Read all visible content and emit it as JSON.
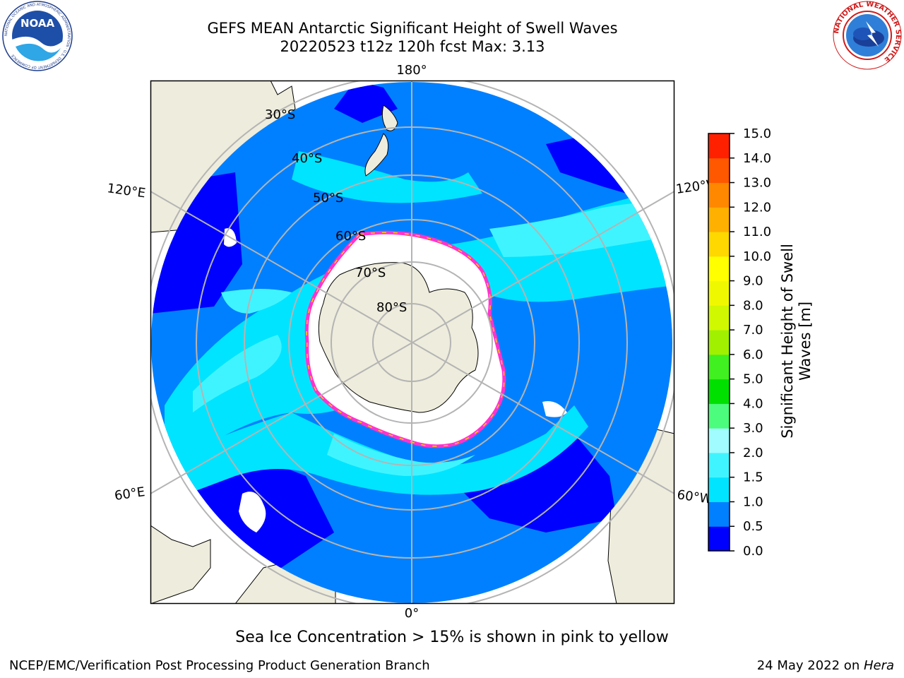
{
  "header": {
    "title_line1": "GEFS MEAN Antarctic Significant Height of Swell Waves",
    "title_line2": "20220523 t12z 120h fcst   Max: 3.13"
  },
  "logos": {
    "left": {
      "name": "noaa-logo",
      "text": "NOAA",
      "ring_text": "NATIONAL OCEANIC AND ATMOSPHERIC ADMINISTRATION · U.S. DEPARTMENT OF COMMERCE"
    },
    "right": {
      "name": "nws-logo",
      "ring_text": "NATIONAL WEATHER SERVICE"
    }
  },
  "map": {
    "projection": "south-polar-stereographic",
    "longitude_labels": {
      "top": "180°",
      "bottom": "0°",
      "upper_left": "120°E",
      "upper_right": "120°W",
      "lower_left": "60°E",
      "lower_right": "60°W"
    },
    "latitude_labels": [
      "30°S",
      "40°S",
      "50°S",
      "60°S",
      "70°S",
      "80°S"
    ],
    "colors": {
      "land": "#eeecdc",
      "coastline": "#000000",
      "grid": "#b4b4b4",
      "ice": "#ffffff",
      "ice_edge": [
        "#ff33cc",
        "#ff99ee",
        "#ffcc00"
      ]
    }
  },
  "colorbar": {
    "label_line1": "Significant Height of Swell",
    "label_line2": "Waves [m]",
    "ticks": [
      "0.0",
      "0.5",
      "1.0",
      "1.5",
      "2.0",
      "3.0",
      "4.0",
      "5.0",
      "6.0",
      "7.0",
      "8.0",
      "9.0",
      "10.0",
      "11.0",
      "12.0",
      "13.0",
      "14.0",
      "15.0"
    ],
    "colors": [
      "#0000ff",
      "#0080ff",
      "#00e4ff",
      "#40f4ff",
      "#a0fcff",
      "#4cfc7c",
      "#00e000",
      "#40f020",
      "#a0f000",
      "#d0f800",
      "#f0f800",
      "#ffff00",
      "#ffd800",
      "#ffb000",
      "#ff8800",
      "#ff5800",
      "#ff2000",
      "#ff0000"
    ]
  },
  "caption": "Sea Ice Concentration > 15% is shown in pink to yellow",
  "footer": {
    "left": "NCEP/EMC/Verification Post Processing Product Generation Branch",
    "right_prefix": "24 May 2022 on ",
    "right_machine": "Hera"
  }
}
